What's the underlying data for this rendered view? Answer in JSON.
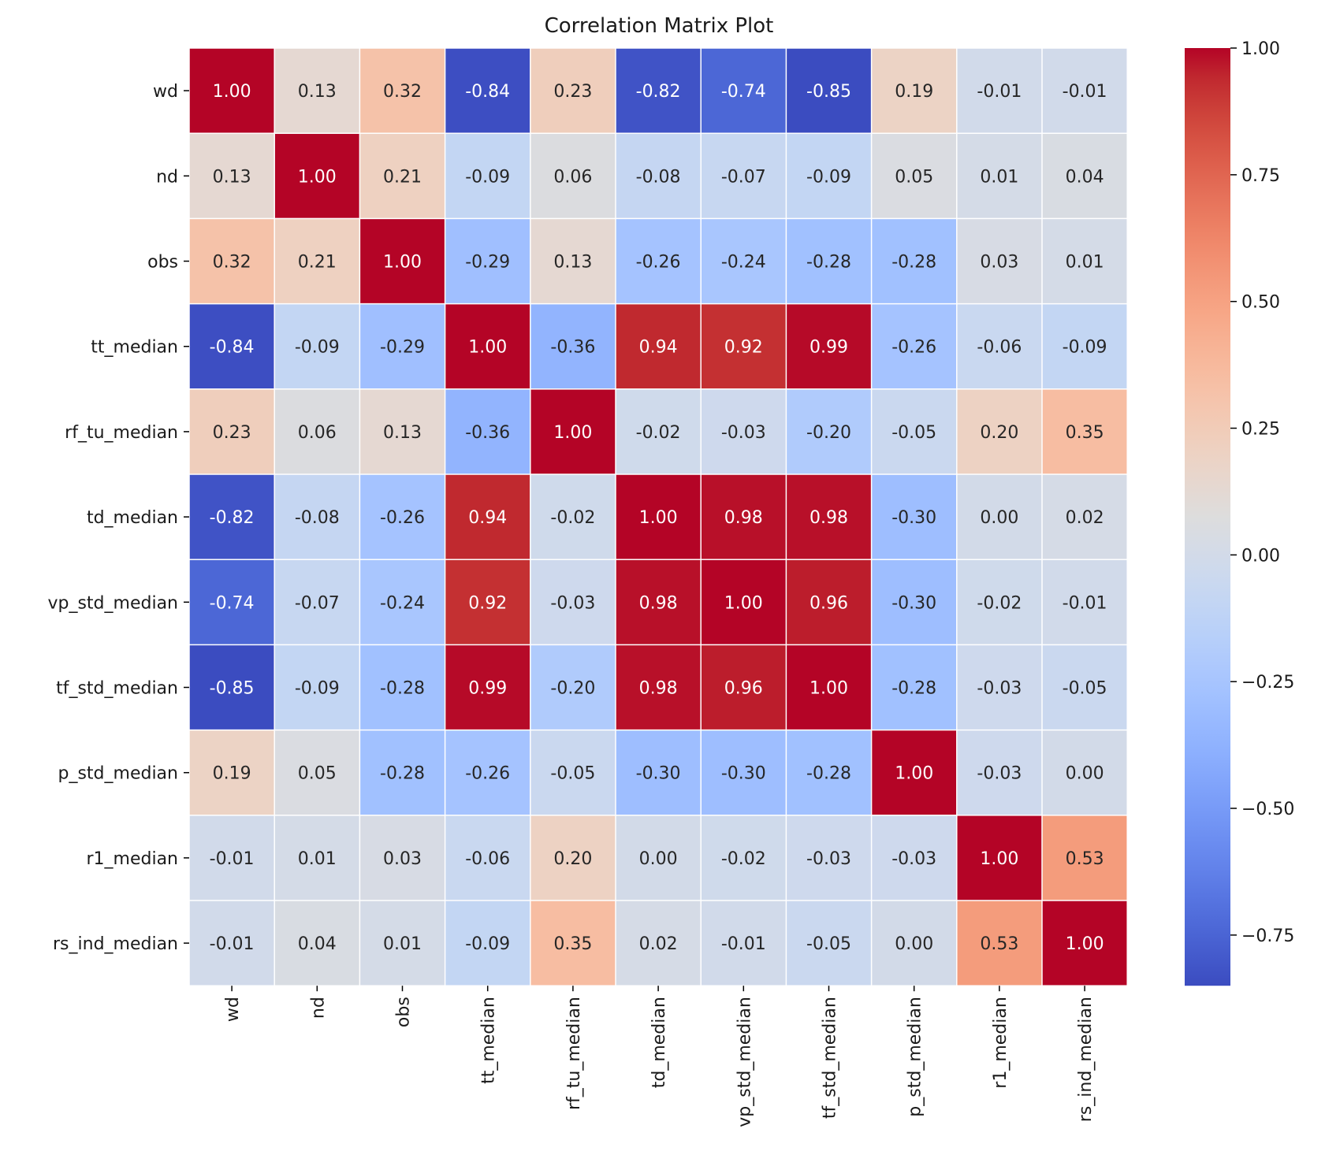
{
  "chart_data": {
    "type": "heatmap",
    "title": "Correlation Matrix Plot",
    "xlabel": "",
    "ylabel": "",
    "labels": [
      "wd",
      "nd",
      "obs",
      "tt_median",
      "rf_tu_median",
      "td_median",
      "vp_std_median",
      "tf_std_median",
      "p_std_median",
      "r1_median",
      "rs_ind_median"
    ],
    "matrix": [
      [
        1.0,
        0.13,
        0.32,
        -0.84,
        0.23,
        -0.82,
        -0.74,
        -0.85,
        0.19,
        -0.01,
        -0.01
      ],
      [
        0.13,
        1.0,
        0.21,
        -0.09,
        0.06,
        -0.08,
        -0.07,
        -0.09,
        0.05,
        0.01,
        0.04
      ],
      [
        0.32,
        0.21,
        1.0,
        -0.29,
        0.13,
        -0.26,
        -0.24,
        -0.28,
        -0.28,
        0.03,
        0.01
      ],
      [
        -0.84,
        -0.09,
        -0.29,
        1.0,
        -0.36,
        0.94,
        0.92,
        0.99,
        -0.26,
        -0.06,
        -0.09
      ],
      [
        0.23,
        0.06,
        0.13,
        -0.36,
        1.0,
        -0.02,
        -0.03,
        -0.2,
        -0.05,
        0.2,
        0.35
      ],
      [
        -0.82,
        -0.08,
        -0.26,
        0.94,
        -0.02,
        1.0,
        0.98,
        0.98,
        -0.3,
        0.0,
        0.02
      ],
      [
        -0.74,
        -0.07,
        -0.24,
        0.92,
        -0.03,
        0.98,
        1.0,
        0.96,
        -0.3,
        -0.02,
        -0.01
      ],
      [
        -0.85,
        -0.09,
        -0.28,
        0.99,
        -0.2,
        0.98,
        0.96,
        1.0,
        -0.28,
        -0.03,
        -0.05
      ],
      [
        0.19,
        0.05,
        -0.28,
        -0.26,
        -0.05,
        -0.3,
        -0.3,
        -0.28,
        1.0,
        -0.03,
        0.0
      ],
      [
        -0.01,
        0.01,
        0.03,
        -0.06,
        0.2,
        0.0,
        -0.02,
        -0.03,
        -0.03,
        1.0,
        0.53
      ],
      [
        -0.01,
        0.04,
        0.01,
        -0.09,
        0.35,
        0.02,
        -0.01,
        -0.05,
        0.0,
        0.53,
        1.0
      ]
    ],
    "value_format": "0.00",
    "colormap": "coolwarm",
    "vmin": -0.85,
    "vmax": 1.0,
    "colorbar": {
      "ticks": [
        1.0,
        0.75,
        0.5,
        0.25,
        0.0,
        -0.25,
        -0.5,
        -0.75
      ],
      "tick_labels": [
        "1.00",
        "0.75",
        "0.50",
        "0.25",
        "0.00",
        "−0.25",
        "−0.50",
        "−0.75"
      ],
      "placement": "right"
    },
    "grid": false,
    "cell_border_color": "#ffffff"
  }
}
